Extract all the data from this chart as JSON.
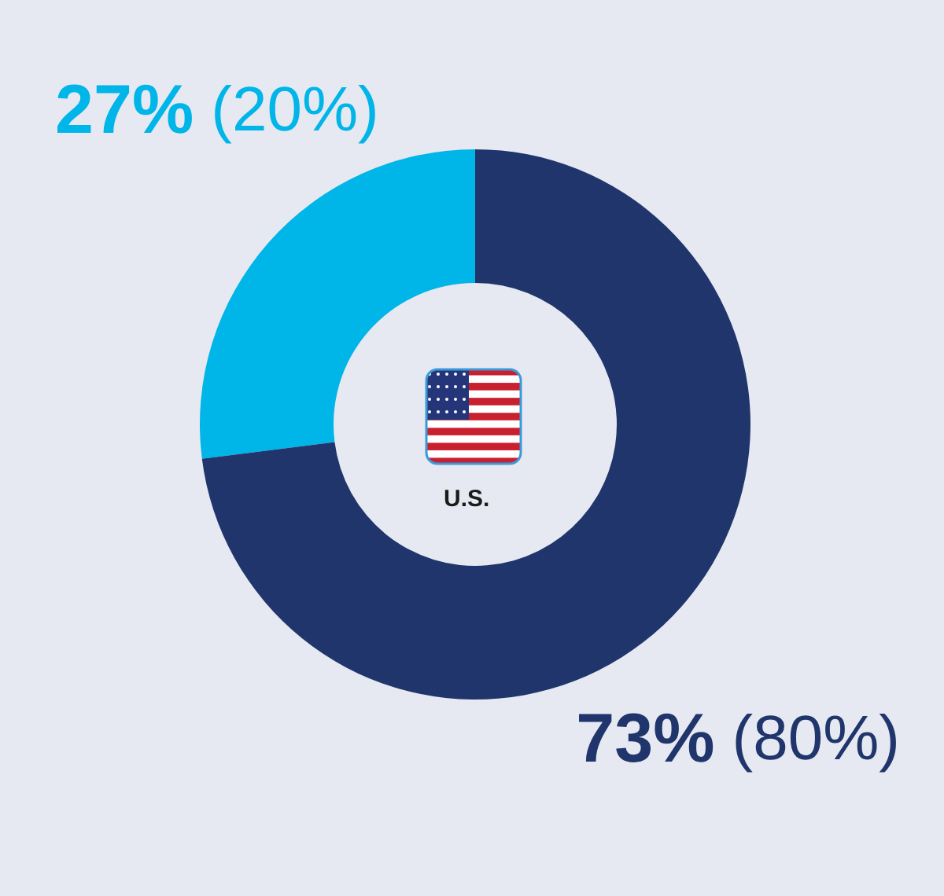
{
  "chart_data": {
    "type": "donut",
    "categories": [
      null,
      null
    ],
    "values": [
      27,
      73
    ],
    "colors": [
      "#00b5e8",
      "#20356b"
    ],
    "value_labels": [
      "27% (20%)",
      "73% (80%)"
    ],
    "annotations": [
      "U.S."
    ]
  }
}
